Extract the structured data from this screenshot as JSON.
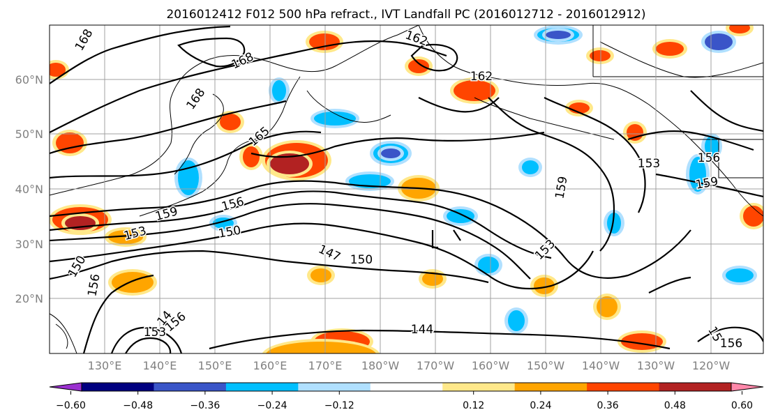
{
  "title": "2016012412 F012 500 hPa refract., IVT Landfall PC (2016012712 - 2016012912)",
  "map": {
    "lat_labels": [
      "60°N",
      "50°N",
      "40°N",
      "30°N",
      "20°N"
    ],
    "lon_labels": [
      "130°E",
      "140°E",
      "150°E",
      "160°E",
      "170°E",
      "180°W",
      "170°W",
      "160°W",
      "150°W",
      "140°W",
      "130°W",
      "120°W"
    ],
    "contour_labels": [
      "168",
      "168",
      "168",
      "165",
      "162",
      "162",
      "159",
      "156",
      "153",
      "150",
      "147",
      "150",
      "159",
      "153",
      "156",
      "159",
      "153",
      "150",
      "156",
      "144",
      "153",
      "156",
      "14",
      "15",
      "156"
    ],
    "grid": true,
    "colors": {
      "land_outline": "#000000",
      "gridline": "#a0a0a0",
      "contour": "#000000"
    }
  },
  "colorbar": {
    "ticks": [
      "−0.60",
      "−0.48",
      "−0.36",
      "−0.24",
      "−0.12",
      "0.12",
      "0.24",
      "0.36",
      "0.48",
      "0.60"
    ],
    "colors": [
      "#9b30d0",
      "#000080",
      "#3a55c8",
      "#00bfff",
      "#b0e0ff",
      "#ffffff",
      "#ffe88a",
      "#ffa500",
      "#ff4500",
      "#b22222",
      "#ff88aa"
    ]
  }
}
